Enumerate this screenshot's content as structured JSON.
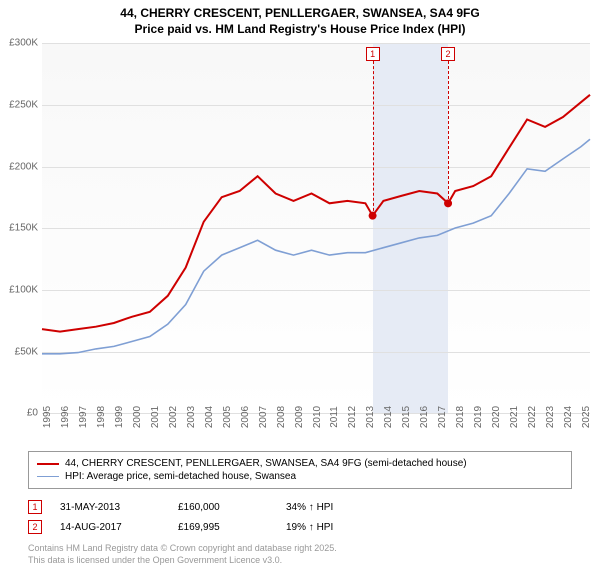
{
  "title_line1": "44, CHERRY CRESCENT, PENLLERGAER, SWANSEA, SA4 9FG",
  "title_line2": "Price paid vs. HM Land Registry's House Price Index (HPI)",
  "chart": {
    "type": "line",
    "background_color": "#f8f8f8",
    "grid_color": "#e0e0e0",
    "ylim": [
      0,
      300000
    ],
    "ytick_step": 50000,
    "yticks": [
      "£0",
      "£50K",
      "£100K",
      "£150K",
      "£200K",
      "£250K",
      "£300K"
    ],
    "xlim": [
      1995,
      2025.5
    ],
    "xticks": [
      1995,
      1996,
      1997,
      1998,
      1999,
      2000,
      2001,
      2002,
      2003,
      2004,
      2005,
      2006,
      2007,
      2008,
      2009,
      2010,
      2011,
      2012,
      2013,
      2014,
      2015,
      2016,
      2017,
      2018,
      2019,
      2020,
      2021,
      2022,
      2023,
      2024,
      2025
    ],
    "plot_band": {
      "from": 2013.4,
      "to": 2017.6,
      "color": "#e6ebf5"
    },
    "series": [
      {
        "name": "44, CHERRY CRESCENT, PENLLERGAER, SWANSEA, SA4 9FG (semi-detached house)",
        "color": "#ce0000",
        "line_width": 2,
        "data": [
          [
            1995,
            68000
          ],
          [
            1996,
            66000
          ],
          [
            1997,
            68000
          ],
          [
            1998,
            70000
          ],
          [
            1999,
            73000
          ],
          [
            2000,
            78000
          ],
          [
            2001,
            82000
          ],
          [
            2002,
            95000
          ],
          [
            2003,
            118000
          ],
          [
            2004,
            155000
          ],
          [
            2005,
            175000
          ],
          [
            2006,
            180000
          ],
          [
            2007,
            192000
          ],
          [
            2008,
            178000
          ],
          [
            2009,
            172000
          ],
          [
            2010,
            178000
          ],
          [
            2011,
            170000
          ],
          [
            2012,
            172000
          ],
          [
            2013,
            170000
          ],
          [
            2013.4,
            160000
          ],
          [
            2014,
            172000
          ],
          [
            2015,
            176000
          ],
          [
            2016,
            180000
          ],
          [
            2017,
            178000
          ],
          [
            2017.6,
            169995
          ],
          [
            2018,
            180000
          ],
          [
            2019,
            184000
          ],
          [
            2020,
            192000
          ],
          [
            2021,
            215000
          ],
          [
            2022,
            238000
          ],
          [
            2023,
            232000
          ],
          [
            2024,
            240000
          ],
          [
            2025,
            252000
          ],
          [
            2025.5,
            258000
          ]
        ]
      },
      {
        "name": "HPI: Average price, semi-detached house, Swansea",
        "color": "#7f9fd4",
        "line_width": 1.6,
        "data": [
          [
            1995,
            48000
          ],
          [
            1996,
            48000
          ],
          [
            1997,
            49000
          ],
          [
            1998,
            52000
          ],
          [
            1999,
            54000
          ],
          [
            2000,
            58000
          ],
          [
            2001,
            62000
          ],
          [
            2002,
            72000
          ],
          [
            2003,
            88000
          ],
          [
            2004,
            115000
          ],
          [
            2005,
            128000
          ],
          [
            2006,
            134000
          ],
          [
            2007,
            140000
          ],
          [
            2008,
            132000
          ],
          [
            2009,
            128000
          ],
          [
            2010,
            132000
          ],
          [
            2011,
            128000
          ],
          [
            2012,
            130000
          ],
          [
            2013,
            130000
          ],
          [
            2014,
            134000
          ],
          [
            2015,
            138000
          ],
          [
            2016,
            142000
          ],
          [
            2017,
            144000
          ],
          [
            2018,
            150000
          ],
          [
            2019,
            154000
          ],
          [
            2020,
            160000
          ],
          [
            2021,
            178000
          ],
          [
            2022,
            198000
          ],
          [
            2023,
            196000
          ],
          [
            2024,
            206000
          ],
          [
            2025,
            216000
          ],
          [
            2025.5,
            222000
          ]
        ]
      }
    ],
    "markers": [
      {
        "label": "1",
        "x": 2013.4,
        "y": 160000
      },
      {
        "label": "2",
        "x": 2017.6,
        "y": 169995
      }
    ],
    "marker_point_color": "#ce0000",
    "marker_point_radius": 4
  },
  "legend": {
    "border_color": "#999999",
    "items": [
      {
        "color": "#ce0000",
        "width": 2,
        "label": "44, CHERRY CRESCENT, PENLLERGAER, SWANSEA, SA4 9FG (semi-detached house)"
      },
      {
        "color": "#7f9fd4",
        "width": 1.6,
        "label": "HPI: Average price, semi-detached house, Swansea"
      }
    ]
  },
  "sales": [
    {
      "num": "1",
      "date": "31-MAY-2013",
      "price": "£160,000",
      "diff": "34% ↑ HPI"
    },
    {
      "num": "2",
      "date": "14-AUG-2017",
      "price": "£169,995",
      "diff": "19% ↑ HPI"
    }
  ],
  "credits_line1": "Contains HM Land Registry data © Crown copyright and database right 2025.",
  "credits_line2": "This data is licensed under the Open Government Licence v3.0."
}
